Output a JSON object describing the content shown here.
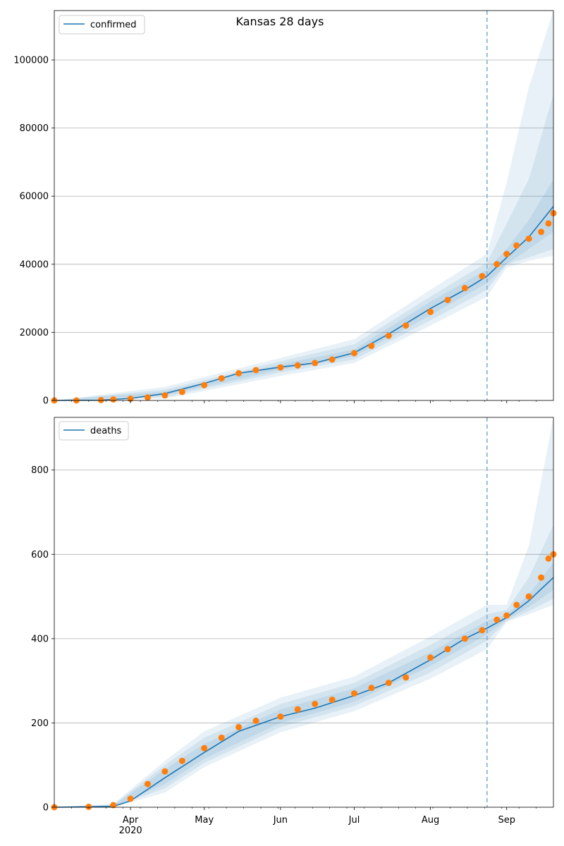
{
  "title": "Kansas 28 days",
  "colors": {
    "line": "#1f77b4",
    "points": "#ff7f0e",
    "band": "#1f77b4",
    "grid": "#b0b0b0",
    "forecast_line": "#7fb0d6"
  },
  "x_axis": {
    "ticks": [
      "Apr",
      "May",
      "Jun",
      "Jul",
      "Aug",
      "Sep"
    ],
    "year_label": "2020"
  },
  "chart_data": [
    {
      "type": "line",
      "legend": "confirmed",
      "legend_position": "top-left",
      "grid": "horizontal",
      "xlim": [
        "2020-03-01",
        "2020-09-20"
      ],
      "ylim": [
        0,
        114500
      ],
      "yticks": [
        "0",
        "20000",
        "40000",
        "60000",
        "80000",
        "100000"
      ],
      "forecast_start": "2020-08-24",
      "model_curve": {
        "x": [
          "2020-03-01",
          "2020-03-20",
          "2020-04-01",
          "2020-04-15",
          "2020-05-01",
          "2020-05-15",
          "2020-06-01",
          "2020-06-15",
          "2020-07-01",
          "2020-07-15",
          "2020-08-01",
          "2020-08-15",
          "2020-08-24",
          "2020-09-01",
          "2020-09-10",
          "2020-09-20"
        ],
        "y": [
          0,
          100,
          600,
          2000,
          5000,
          8000,
          9800,
          11000,
          14000,
          19500,
          27000,
          32500,
          36500,
          42000,
          48000,
          57000
        ]
      },
      "bands": [
        {
          "x": [
            "2020-03-01",
            "2020-04-15",
            "2020-06-01",
            "2020-07-01",
            "2020-08-01",
            "2020-08-24",
            "2020-09-01",
            "2020-09-10",
            "2020-09-20"
          ],
          "lower": [
            0,
            1500,
            9000,
            13000,
            25000,
            34500,
            40000,
            44500,
            49500
          ],
          "upper": [
            0,
            2600,
            10600,
            15000,
            29000,
            38500,
            44500,
            53000,
            65000
          ]
        },
        {
          "x": [
            "2020-03-01",
            "2020-04-15",
            "2020-06-01",
            "2020-07-01",
            "2020-08-01",
            "2020-08-24",
            "2020-09-01",
            "2020-09-10",
            "2020-09-20"
          ],
          "lower": [
            0,
            1000,
            8200,
            12000,
            23500,
            32500,
            40000,
            42000,
            44500
          ],
          "upper": [
            0,
            3200,
            11500,
            16500,
            30500,
            40500,
            52000,
            65000,
            90000
          ]
        },
        {
          "x": [
            "2020-03-01",
            "2020-04-15",
            "2020-06-01",
            "2020-07-01",
            "2020-08-01",
            "2020-08-24",
            "2020-09-01",
            "2020-09-10",
            "2020-09-20"
          ],
          "lower": [
            0,
            500,
            7200,
            11000,
            22000,
            30500,
            39000,
            41000,
            42500
          ],
          "upper": [
            0,
            4000,
            12500,
            18000,
            32500,
            43000,
            64000,
            92000,
            114500
          ]
        }
      ],
      "observed": {
        "x": [
          "2020-03-01",
          "2020-03-10",
          "2020-03-20",
          "2020-03-25",
          "2020-04-01",
          "2020-04-08",
          "2020-04-15",
          "2020-04-22",
          "2020-05-01",
          "2020-05-08",
          "2020-05-15",
          "2020-05-22",
          "2020-06-01",
          "2020-06-08",
          "2020-06-15",
          "2020-06-22",
          "2020-07-01",
          "2020-07-08",
          "2020-07-15",
          "2020-07-22",
          "2020-08-01",
          "2020-08-08",
          "2020-08-15",
          "2020-08-22",
          "2020-08-28",
          "2020-09-01",
          "2020-09-05",
          "2020-09-10",
          "2020-09-15",
          "2020-09-18",
          "2020-09-20"
        ],
        "y": [
          0,
          0,
          100,
          300,
          500,
          900,
          1500,
          2500,
          4500,
          6500,
          8000,
          8900,
          9700,
          10300,
          11000,
          12000,
          13900,
          16000,
          19000,
          22000,
          26000,
          29500,
          33000,
          36500,
          40000,
          43000,
          45500,
          47500,
          49500,
          52000,
          55000
        ]
      }
    },
    {
      "type": "line",
      "legend": "deaths",
      "legend_position": "top-left",
      "grid": "horizontal",
      "xlim": [
        "2020-03-01",
        "2020-09-20"
      ],
      "ylim": [
        0,
        925
      ],
      "yticks": [
        "0",
        "200",
        "400",
        "600",
        "800"
      ],
      "forecast_start": "2020-08-24",
      "model_curve": {
        "x": [
          "2020-03-01",
          "2020-03-25",
          "2020-04-01",
          "2020-04-15",
          "2020-05-01",
          "2020-05-15",
          "2020-06-01",
          "2020-06-15",
          "2020-07-01",
          "2020-07-15",
          "2020-08-01",
          "2020-08-15",
          "2020-08-24",
          "2020-09-01",
          "2020-09-10",
          "2020-09-20"
        ],
        "y": [
          0,
          2,
          15,
          70,
          130,
          180,
          215,
          235,
          265,
          295,
          350,
          400,
          425,
          450,
          490,
          545
        ]
      },
      "bands": [
        {
          "x": [
            "2020-03-01",
            "2020-03-25",
            "2020-04-15",
            "2020-05-01",
            "2020-06-01",
            "2020-07-01",
            "2020-08-01",
            "2020-08-24",
            "2020-09-01",
            "2020-09-10",
            "2020-09-20"
          ],
          "lower": [
            0,
            2,
            55,
            115,
            200,
            250,
            335,
            410,
            445,
            475,
            515
          ],
          "upper": [
            0,
            4,
            90,
            150,
            232,
            282,
            368,
            442,
            458,
            505,
            580
          ]
        },
        {
          "x": [
            "2020-03-01",
            "2020-03-25",
            "2020-04-15",
            "2020-05-01",
            "2020-06-01",
            "2020-07-01",
            "2020-08-01",
            "2020-08-24",
            "2020-09-01",
            "2020-09-10",
            "2020-09-20"
          ],
          "lower": [
            0,
            1,
            45,
            105,
            190,
            240,
            320,
            395,
            442,
            465,
            495
          ],
          "upper": [
            0,
            6,
            100,
            165,
            245,
            295,
            385,
            458,
            468,
            545,
            670
          ]
        },
        {
          "x": [
            "2020-03-01",
            "2020-03-25",
            "2020-04-15",
            "2020-05-01",
            "2020-06-01",
            "2020-07-01",
            "2020-08-01",
            "2020-08-24",
            "2020-09-01",
            "2020-09-10",
            "2020-09-20"
          ],
          "lower": [
            0,
            0,
            35,
            95,
            178,
            228,
            305,
            375,
            440,
            458,
            480
          ],
          "upper": [
            0,
            8,
            110,
            180,
            260,
            310,
            405,
            480,
            480,
            620,
            925
          ]
        }
      ],
      "observed": {
        "x": [
          "2020-03-01",
          "2020-03-15",
          "2020-03-25",
          "2020-04-01",
          "2020-04-08",
          "2020-04-15",
          "2020-04-22",
          "2020-05-01",
          "2020-05-08",
          "2020-05-15",
          "2020-05-22",
          "2020-06-01",
          "2020-06-08",
          "2020-06-15",
          "2020-06-22",
          "2020-07-01",
          "2020-07-08",
          "2020-07-15",
          "2020-07-22",
          "2020-08-01",
          "2020-08-08",
          "2020-08-15",
          "2020-08-22",
          "2020-08-28",
          "2020-09-01",
          "2020-09-05",
          "2020-09-10",
          "2020-09-15",
          "2020-09-18",
          "2020-09-20"
        ],
        "y": [
          0,
          1,
          5,
          20,
          55,
          85,
          110,
          140,
          165,
          190,
          205,
          215,
          232,
          245,
          255,
          270,
          283,
          295,
          308,
          355,
          375,
          400,
          420,
          445,
          455,
          480,
          500,
          545,
          590,
          600
        ]
      }
    }
  ]
}
